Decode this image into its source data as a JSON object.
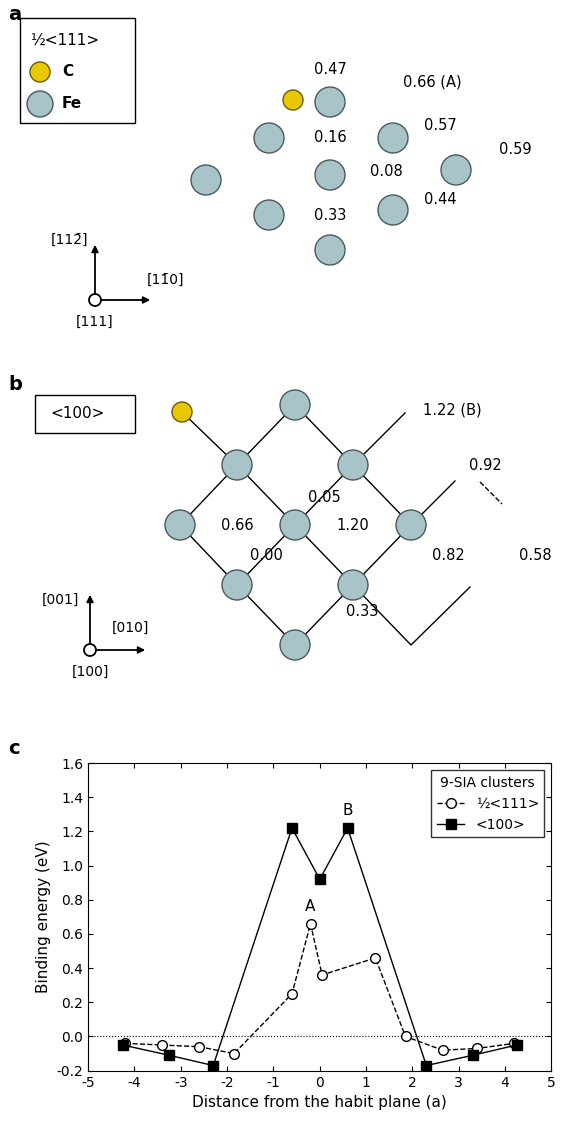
{
  "panel_a": {
    "label": "a",
    "type_box": "½<111>",
    "legend": [
      {
        "name": "C",
        "color": "#e8c800"
      },
      {
        "name": "Fe",
        "color": "#a9c4c8"
      }
    ],
    "axes_labels": {
      "up": "[112̄]",
      "right": "[11̄0]",
      "out": "[111]"
    },
    "site_labels": [
      "0.47",
      "0.66 (A)",
      "0.16",
      "0.57",
      "0.08",
      "0.59",
      "0.44",
      "0.33"
    ]
  },
  "panel_b": {
    "label": "b",
    "type_box": "<100>",
    "axes_labels": {
      "up": "[001]",
      "right": "[010]",
      "out": "[100]"
    },
    "site_labels": [
      "1.22 (B)",
      "0.66",
      "0.05",
      "1.20",
      "0.92",
      "0.00",
      "0.33",
      "0.82",
      "0.58"
    ]
  },
  "chart_data": {
    "label": "c",
    "type": "line",
    "x_label": "Distance from the habit plane (a)",
    "y_label": "Binding energy (eV)",
    "xlim": [
      -5,
      5
    ],
    "xticks": [
      -5,
      -4,
      -3,
      -2,
      -1,
      0,
      1,
      2,
      3,
      4,
      5
    ],
    "ylim": [
      -0.2,
      1.6
    ],
    "yticks": [
      -0.2,
      0.0,
      0.2,
      0.4,
      0.6,
      0.8,
      1.0,
      1.2,
      1.4,
      1.6
    ],
    "hline": 0.0,
    "legend": "upper right",
    "legend_title": "9-SIA clusters",
    "series": [
      {
        "name": "½<111>",
        "color": "#000000",
        "marker": "circle_open",
        "line_style": "dashed",
        "x": [
          -4.2,
          -3.4,
          -2.6,
          -1.85,
          -0.6,
          -0.2,
          0.05,
          1.2,
          1.85,
          2.65,
          3.4,
          4.2
        ],
        "values": [
          -0.04,
          -0.05,
          -0.06,
          -0.1,
          0.25,
          0.66,
          0.36,
          0.46,
          0.0,
          -0.08,
          -0.07,
          -0.04
        ]
      },
      {
        "name": "<100>",
        "color": "#000000",
        "marker": "square",
        "line_style": "solid",
        "x": [
          -4.25,
          -3.25,
          -2.3,
          -0.6,
          0.0,
          0.6,
          2.3,
          3.3,
          4.25
        ],
        "values": [
          -0.05,
          -0.11,
          -0.17,
          1.22,
          0.92,
          1.22,
          -0.17,
          -0.11,
          -0.05
        ]
      }
    ],
    "annotations": [
      {
        "text": "A",
        "x": -0.2,
        "y": 0.66
      },
      {
        "text": "B",
        "x": 0.6,
        "y": 1.22
      }
    ]
  }
}
